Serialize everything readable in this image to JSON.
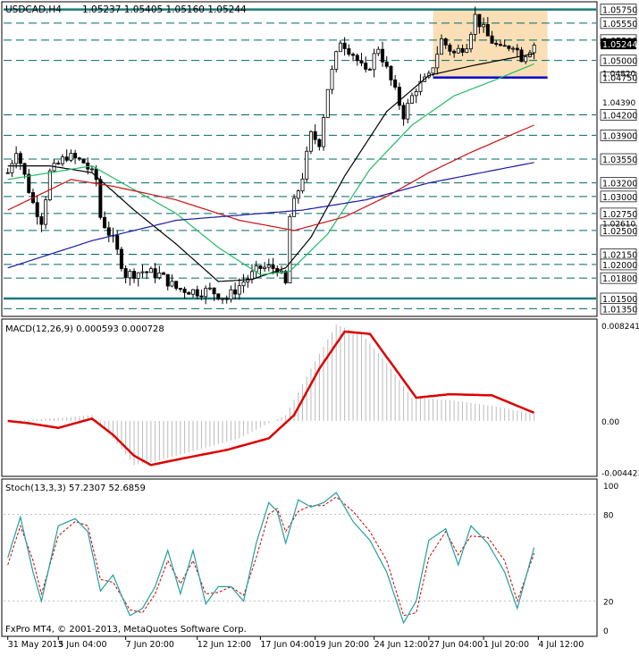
{
  "header": {
    "symbol_timeframe": "USDCAD,H4",
    "ohlc": "1.05237 1.05405 1.05160 1.05244"
  },
  "copyright": "FxPro MT4, © 2001-2013, MetaQuotes Software Corp.",
  "colors": {
    "background": "#ffffff",
    "candle": "#000000",
    "hline_dashed": "#006868",
    "hline_solid": "#1a7a7a",
    "support_line": "#0000cc",
    "box_fill": "#f9d9a9",
    "ma_black": "#000000",
    "ma_green": "#22bb66",
    "ma_red": "#cc1111",
    "ma_blue": "#1a1aa0",
    "macd_hist": "#bbbbbb",
    "macd_signal": "#dd0000",
    "stoch_main": "#20a0a0",
    "stoch_signal": "#cc0000",
    "label_bg": "#ffffff",
    "current_price_bg": "#000000"
  },
  "chart_data": [
    {
      "panel": "price",
      "type": "candlestick",
      "title": "USDCAD,H4",
      "ylim": [
        1.0125,
        1.0585
      ],
      "price_labels": [
        {
          "text": "1.05750",
          "value": 1.0575,
          "style": "solid-thick"
        },
        {
          "text": "1.05550",
          "value": 1.0555,
          "style": "dashed"
        },
        {
          "text": "1.05300",
          "value": 1.053,
          "style": "dashed"
        },
        {
          "text": "1.05000",
          "value": 1.05,
          "style": "dashed"
        },
        {
          "text": "1.04750",
          "value": 1.0475,
          "style": "blue-support"
        },
        {
          "text": "1.04200",
          "value": 1.042,
          "style": "dashed"
        },
        {
          "text": "1.03900",
          "value": 1.039,
          "style": "dashed"
        },
        {
          "text": "1.03550",
          "value": 1.0355,
          "style": "dashed"
        },
        {
          "text": "1.03200",
          "value": 1.032,
          "style": "dashed"
        },
        {
          "text": "1.03000",
          "value": 1.03,
          "style": "dashed"
        },
        {
          "text": "1.02750",
          "value": 1.0275,
          "style": "dashed"
        },
        {
          "text": "1.02500",
          "value": 1.025,
          "style": "dashed"
        },
        {
          "text": "1.02150",
          "value": 1.0215,
          "style": "dashed"
        },
        {
          "text": "1.02000",
          "value": 1.02,
          "style": "dashed"
        },
        {
          "text": "1.01800",
          "value": 1.018,
          "style": "dashed"
        },
        {
          "text": "1.01500",
          "value": 1.015,
          "style": "solid-thick"
        },
        {
          "text": "1.01350",
          "value": 1.0135,
          "style": "dashed"
        }
      ],
      "scale_labels": [
        {
          "text": "1.04820",
          "value": 1.0482
        },
        {
          "text": "1.04390",
          "value": 1.0439
        },
        {
          "text": "1.02610",
          "value": 1.0261
        }
      ],
      "current_price": {
        "text": "1.05244",
        "value": 1.05244
      },
      "highlight_box": {
        "x_start": 101,
        "x_end": 125,
        "y_low": 1.0475,
        "y_high": 1.0575
      },
      "support_segment": {
        "x_start": 101,
        "x_end": 125,
        "y": 1.0475
      },
      "key_points": [
        {
          "x": 0,
          "p": 1.0335
        },
        {
          "x": 2,
          "p": 1.037
        },
        {
          "x": 6,
          "p": 1.029
        },
        {
          "x": 8,
          "p": 1.0265
        },
        {
          "x": 10,
          "p": 1.0335
        },
        {
          "x": 14,
          "p": 1.036
        },
        {
          "x": 18,
          "p": 1.035
        },
        {
          "x": 21,
          "p": 1.0325
        },
        {
          "x": 22,
          "p": 1.027
        },
        {
          "x": 25,
          "p": 1.0235
        },
        {
          "x": 28,
          "p": 1.0185
        },
        {
          "x": 32,
          "p": 1.019
        },
        {
          "x": 36,
          "p": 1.0185
        },
        {
          "x": 40,
          "p": 1.0165
        },
        {
          "x": 45,
          "p": 1.016
        },
        {
          "x": 48,
          "p": 1.0162
        },
        {
          "x": 52,
          "p": 1.015
        },
        {
          "x": 56,
          "p": 1.0175
        },
        {
          "x": 60,
          "p": 1.0195
        },
        {
          "x": 64,
          "p": 1.0195
        },
        {
          "x": 66,
          "p": 1.017
        },
        {
          "x": 67,
          "p": 1.027
        },
        {
          "x": 70,
          "p": 1.033
        },
        {
          "x": 72,
          "p": 1.039
        },
        {
          "x": 74,
          "p": 1.038
        },
        {
          "x": 76,
          "p": 1.046
        },
        {
          "x": 79,
          "p": 1.053
        },
        {
          "x": 82,
          "p": 1.051
        },
        {
          "x": 85,
          "p": 1.048
        },
        {
          "x": 88,
          "p": 1.052
        },
        {
          "x": 91,
          "p": 1.047
        },
        {
          "x": 94,
          "p": 1.042
        },
        {
          "x": 97,
          "p": 1.046
        },
        {
          "x": 100,
          "p": 1.0475
        },
        {
          "x": 103,
          "p": 1.053
        },
        {
          "x": 106,
          "p": 1.051
        },
        {
          "x": 109,
          "p": 1.0525
        },
        {
          "x": 111,
          "p": 1.0565
        },
        {
          "x": 114,
          "p": 1.0535
        },
        {
          "x": 117,
          "p": 1.0515
        },
        {
          "x": 120,
          "p": 1.0525
        },
        {
          "x": 122,
          "p": 1.0505
        },
        {
          "x": 125,
          "p": 1.0524
        }
      ],
      "ma_series": [
        {
          "color": "black",
          "points": [
            {
              "x": 0,
              "p": 1.0345
            },
            {
              "x": 10,
              "p": 1.0345
            },
            {
              "x": 20,
              "p": 1.0335
            },
            {
              "x": 30,
              "p": 1.028
            },
            {
              "x": 40,
              "p": 1.023
            },
            {
              "x": 50,
              "p": 1.0175
            },
            {
              "x": 58,
              "p": 1.0178
            },
            {
              "x": 66,
              "p": 1.0195
            },
            {
              "x": 72,
              "p": 1.024
            },
            {
              "x": 80,
              "p": 1.033
            },
            {
              "x": 90,
              "p": 1.0425
            },
            {
              "x": 100,
              "p": 1.0478
            },
            {
              "x": 110,
              "p": 1.0492
            },
            {
              "x": 125,
              "p": 1.051
            }
          ]
        },
        {
          "color": "green",
          "points": [
            {
              "x": 0,
              "p": 1.0325
            },
            {
              "x": 20,
              "p": 1.0345
            },
            {
              "x": 30,
              "p": 1.031
            },
            {
              "x": 40,
              "p": 1.0275
            },
            {
              "x": 50,
              "p": 1.0225
            },
            {
              "x": 60,
              "p": 1.0185
            },
            {
              "x": 67,
              "p": 1.019
            },
            {
              "x": 76,
              "p": 1.0245
            },
            {
              "x": 86,
              "p": 1.034
            },
            {
              "x": 96,
              "p": 1.0405
            },
            {
              "x": 106,
              "p": 1.0448
            },
            {
              "x": 116,
              "p": 1.0472
            },
            {
              "x": 125,
              "p": 1.0495
            }
          ]
        },
        {
          "color": "red",
          "points": [
            {
              "x": 0,
              "p": 1.028
            },
            {
              "x": 15,
              "p": 1.0325
            },
            {
              "x": 25,
              "p": 1.0315
            },
            {
              "x": 40,
              "p": 1.0295
            },
            {
              "x": 55,
              "p": 1.0265
            },
            {
              "x": 68,
              "p": 1.025
            },
            {
              "x": 80,
              "p": 1.027
            },
            {
              "x": 90,
              "p": 1.03
            },
            {
              "x": 100,
              "p": 1.0335
            },
            {
              "x": 110,
              "p": 1.0365
            },
            {
              "x": 125,
              "p": 1.0405
            }
          ]
        },
        {
          "color": "blue",
          "points": [
            {
              "x": 0,
              "p": 1.0195
            },
            {
              "x": 20,
              "p": 1.0235
            },
            {
              "x": 40,
              "p": 1.0265
            },
            {
              "x": 60,
              "p": 1.0275
            },
            {
              "x": 70,
              "p": 1.028
            },
            {
              "x": 85,
              "p": 1.0295
            },
            {
              "x": 100,
              "p": 1.032
            },
            {
              "x": 125,
              "p": 1.035
            }
          ]
        }
      ]
    },
    {
      "panel": "macd",
      "type": "line+histogram",
      "title": "MACD(12,26,9) 0.000593 0.000728",
      "ylim": [
        -0.0047,
        0.0087
      ],
      "tick_labels": [
        {
          "text": "0.008241",
          "value": 0.008241
        },
        {
          "text": "0.00",
          "value": 0.0
        },
        {
          "text": "-0.004423",
          "value": -0.004423
        }
      ],
      "histogram": [
        {
          "x": 0,
          "v": 0.0
        },
        {
          "x": 10,
          "v": 0.0002
        },
        {
          "x": 20,
          "v": 0.0005
        },
        {
          "x": 25,
          "v": -0.0015
        },
        {
          "x": 30,
          "v": -0.0038
        },
        {
          "x": 35,
          "v": -0.0035
        },
        {
          "x": 45,
          "v": -0.0025
        },
        {
          "x": 55,
          "v": -0.0015
        },
        {
          "x": 62,
          "v": -0.0002
        },
        {
          "x": 66,
          "v": 0.0005
        },
        {
          "x": 72,
          "v": 0.0045
        },
        {
          "x": 78,
          "v": 0.0083
        },
        {
          "x": 84,
          "v": 0.0075
        },
        {
          "x": 90,
          "v": 0.005
        },
        {
          "x": 96,
          "v": 0.002
        },
        {
          "x": 105,
          "v": 0.0018
        },
        {
          "x": 115,
          "v": 0.0013
        },
        {
          "x": 125,
          "v": 0.0006
        }
      ],
      "signal": [
        {
          "x": 0,
          "v": 0.0
        },
        {
          "x": 5,
          "v": -0.0002
        },
        {
          "x": 12,
          "v": -0.0006
        },
        {
          "x": 20,
          "v": 0.0002
        },
        {
          "x": 25,
          "v": -0.0012
        },
        {
          "x": 30,
          "v": -0.003
        },
        {
          "x": 34,
          "v": -0.0038
        },
        {
          "x": 42,
          "v": -0.0032
        },
        {
          "x": 52,
          "v": -0.0025
        },
        {
          "x": 62,
          "v": -0.0015
        },
        {
          "x": 68,
          "v": 0.0005
        },
        {
          "x": 74,
          "v": 0.0045
        },
        {
          "x": 80,
          "v": 0.0077
        },
        {
          "x": 86,
          "v": 0.0075
        },
        {
          "x": 92,
          "v": 0.0045
        },
        {
          "x": 97,
          "v": 0.002
        },
        {
          "x": 105,
          "v": 0.0023
        },
        {
          "x": 115,
          "v": 0.0022
        },
        {
          "x": 125,
          "v": 0.0007
        }
      ]
    },
    {
      "panel": "stochastic",
      "type": "line",
      "title": "Stoch(13,3,3) 57.2307 52.6859",
      "ylim": [
        0,
        100
      ],
      "tick_labels": [
        {
          "text": "100",
          "value": 100
        },
        {
          "text": "80",
          "value": 80
        },
        {
          "text": "20",
          "value": 20
        },
        {
          "text": "0",
          "value": 0
        }
      ],
      "main": [
        {
          "x": 0,
          "v": 50
        },
        {
          "x": 3,
          "v": 78
        },
        {
          "x": 6,
          "v": 40
        },
        {
          "x": 8,
          "v": 20
        },
        {
          "x": 12,
          "v": 72
        },
        {
          "x": 16,
          "v": 77
        },
        {
          "x": 19,
          "v": 68
        },
        {
          "x": 22,
          "v": 27
        },
        {
          "x": 25,
          "v": 38
        },
        {
          "x": 29,
          "v": 10
        },
        {
          "x": 32,
          "v": 15
        },
        {
          "x": 35,
          "v": 30
        },
        {
          "x": 38,
          "v": 55
        },
        {
          "x": 41,
          "v": 25
        },
        {
          "x": 44,
          "v": 55
        },
        {
          "x": 47,
          "v": 18
        },
        {
          "x": 50,
          "v": 30
        },
        {
          "x": 53,
          "v": 30
        },
        {
          "x": 56,
          "v": 20
        },
        {
          "x": 59,
          "v": 60
        },
        {
          "x": 62,
          "v": 88
        },
        {
          "x": 64,
          "v": 82
        },
        {
          "x": 66,
          "v": 60
        },
        {
          "x": 69,
          "v": 90
        },
        {
          "x": 72,
          "v": 85
        },
        {
          "x": 75,
          "v": 88
        },
        {
          "x": 78,
          "v": 95
        },
        {
          "x": 82,
          "v": 75
        },
        {
          "x": 86,
          "v": 62
        },
        {
          "x": 90,
          "v": 40
        },
        {
          "x": 94,
          "v": 5
        },
        {
          "x": 97,
          "v": 20
        },
        {
          "x": 100,
          "v": 62
        },
        {
          "x": 104,
          "v": 70
        },
        {
          "x": 107,
          "v": 45
        },
        {
          "x": 110,
          "v": 72
        },
        {
          "x": 114,
          "v": 60
        },
        {
          "x": 118,
          "v": 40
        },
        {
          "x": 121,
          "v": 15
        },
        {
          "x": 125,
          "v": 57
        }
      ],
      "signal": [
        {
          "x": 0,
          "v": 45
        },
        {
          "x": 3,
          "v": 72
        },
        {
          "x": 6,
          "v": 48
        },
        {
          "x": 8,
          "v": 25
        },
        {
          "x": 12,
          "v": 65
        },
        {
          "x": 16,
          "v": 75
        },
        {
          "x": 19,
          "v": 72
        },
        {
          "x": 22,
          "v": 35
        },
        {
          "x": 25,
          "v": 33
        },
        {
          "x": 29,
          "v": 14
        },
        {
          "x": 32,
          "v": 12
        },
        {
          "x": 35,
          "v": 25
        },
        {
          "x": 38,
          "v": 48
        },
        {
          "x": 41,
          "v": 32
        },
        {
          "x": 44,
          "v": 48
        },
        {
          "x": 47,
          "v": 25
        },
        {
          "x": 50,
          "v": 26
        },
        {
          "x": 53,
          "v": 30
        },
        {
          "x": 56,
          "v": 24
        },
        {
          "x": 59,
          "v": 50
        },
        {
          "x": 62,
          "v": 80
        },
        {
          "x": 64,
          "v": 84
        },
        {
          "x": 66,
          "v": 68
        },
        {
          "x": 69,
          "v": 82
        },
        {
          "x": 72,
          "v": 86
        },
        {
          "x": 75,
          "v": 86
        },
        {
          "x": 78,
          "v": 92
        },
        {
          "x": 82,
          "v": 82
        },
        {
          "x": 86,
          "v": 68
        },
        {
          "x": 90,
          "v": 48
        },
        {
          "x": 94,
          "v": 10
        },
        {
          "x": 97,
          "v": 12
        },
        {
          "x": 100,
          "v": 50
        },
        {
          "x": 104,
          "v": 68
        },
        {
          "x": 107,
          "v": 52
        },
        {
          "x": 110,
          "v": 65
        },
        {
          "x": 114,
          "v": 64
        },
        {
          "x": 118,
          "v": 48
        },
        {
          "x": 121,
          "v": 20
        },
        {
          "x": 125,
          "v": 53
        }
      ]
    }
  ],
  "x_axis_labels": [
    {
      "text": "31 May 2013",
      "x": 0
    },
    {
      "text": "5 Jun 04:00",
      "x": 12
    },
    {
      "text": "7 Jun 20:00",
      "x": 28
    },
    {
      "text": "12 Jun 12:00",
      "x": 45
    },
    {
      "text": "17 Jun 04:00",
      "x": 60
    },
    {
      "text": "19 Jun 20:00",
      "x": 73
    },
    {
      "text": "24 Jun 12:00",
      "x": 87
    },
    {
      "text": "27 Jun 04:00",
      "x": 100
    },
    {
      "text": "1 Jul 20:00",
      "x": 113
    },
    {
      "text": "4 Jul 12:00",
      "x": 126
    }
  ]
}
